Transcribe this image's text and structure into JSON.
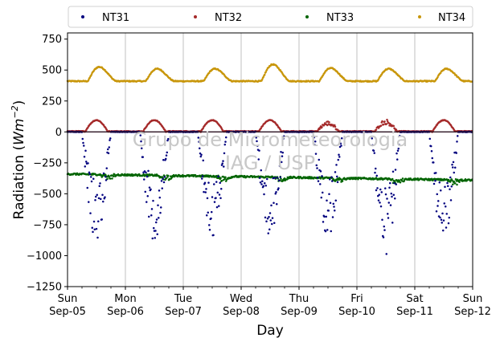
{
  "chart_data": {
    "type": "scatter",
    "xlabel": "Day",
    "ylabel_main": "Radiation (",
    "ylabel_unit_base": "Wm",
    "ylabel_unit_exp": "−2",
    "ylabel_close": ")",
    "ylim": [
      -1250,
      800
    ],
    "y_ticks": [
      -1250,
      -1000,
      -750,
      -500,
      -250,
      0,
      250,
      500,
      750
    ],
    "y_tick_labels": [
      "−1250",
      "−1000",
      "−750",
      "−500",
      "−250",
      "0",
      "250",
      "500",
      "750"
    ],
    "xlim": [
      0,
      7
    ],
    "x_ticks": [
      0,
      1,
      2,
      3,
      4,
      5,
      6,
      7
    ],
    "x_tick_labels_top": [
      "Sun",
      "Mon",
      "Tue",
      "Wed",
      "Thu",
      "Fri",
      "Sat",
      "Sun"
    ],
    "x_tick_labels_bottom": [
      "Sep-05",
      "Sep-06",
      "Sep-07",
      "Sep-08",
      "Sep-09",
      "Sep-10",
      "Sep-11",
      "Sep-12"
    ],
    "grid_x": true,
    "legend_placement": "top",
    "watermark_lines": [
      "Grupo de Micrometeorologia",
      "IAG / USP"
    ],
    "series": [
      {
        "name": "NT31",
        "color": "#00007f",
        "nighttime_value": 0,
        "daily_min": [
          -880,
          -880,
          -890,
          -860,
          -860,
          -1000,
          -910
        ],
        "active_day": [
          0.25,
          0.75
        ]
      },
      {
        "name": "NT32",
        "color": "#a52a2a",
        "nighttime_value": 5,
        "daily_peak": [
          95,
          95,
          95,
          95,
          85,
          100,
          95
        ],
        "active_day": [
          0.3,
          0.7
        ]
      },
      {
        "name": "NT33",
        "color": "#006400",
        "baseline_start": -340,
        "baseline_end": -390,
        "dip_range": [
          -450,
          -350
        ]
      },
      {
        "name": "NT34",
        "color": "#c8960a",
        "baseline": 410,
        "daily_peak": [
          525,
          510,
          510,
          545,
          515,
          510,
          510
        ]
      }
    ]
  }
}
